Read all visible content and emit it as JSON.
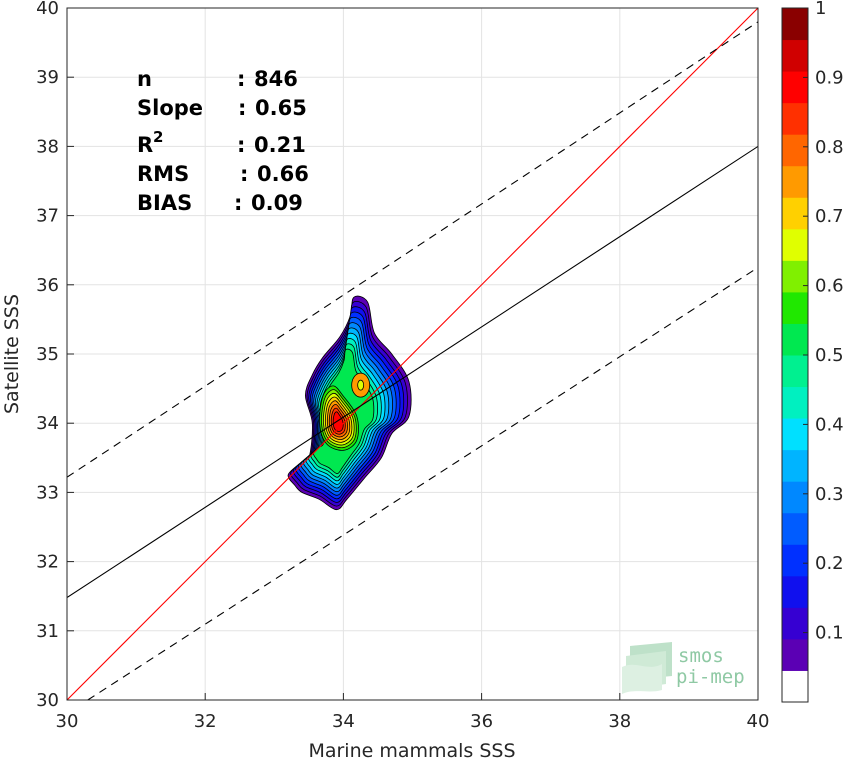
{
  "chart_data": {
    "type": "contour",
    "xlabel": "Marine mammals SSS",
    "ylabel": "Satellite SSS",
    "xlim": [
      30,
      40
    ],
    "ylim": [
      30,
      40
    ],
    "x_ticks": [
      "30",
      "32",
      "34",
      "36",
      "38",
      "40"
    ],
    "y_ticks": [
      "30",
      "31",
      "32",
      "33",
      "34",
      "35",
      "36",
      "37",
      "38",
      "39",
      "40"
    ],
    "grid": true,
    "stats": [
      {
        "key": "n",
        "sep": ":",
        "value": "846"
      },
      {
        "key": "Slope",
        "sep": ":",
        "value": "0.65"
      },
      {
        "key": "R",
        "sup": "2",
        "sep": ":",
        "value": "0.21"
      },
      {
        "key": "RMS",
        "sep": ":",
        "value": "0.66"
      },
      {
        "key": "BIAS",
        "sep": ":",
        "value": "0.09"
      }
    ],
    "lines": [
      {
        "name": "one-to-one",
        "color": "#ff0000",
        "dash": "solid",
        "points": [
          [
            30,
            30
          ],
          [
            40,
            40
          ]
        ]
      },
      {
        "name": "regression",
        "color": "#000000",
        "dash": "solid",
        "points": [
          [
            30,
            31.48
          ],
          [
            40,
            38.0
          ]
        ]
      },
      {
        "name": "upper-bound",
        "color": "#000000",
        "dash": "dashed",
        "points": [
          [
            30,
            33.22
          ],
          [
            40,
            39.8
          ]
        ]
      },
      {
        "name": "lower-bound",
        "color": "#000000",
        "dash": "dashed",
        "points": [
          [
            30.3,
            30.0
          ],
          [
            40,
            36.25
          ]
        ]
      }
    ],
    "density": {
      "center": [
        33.92,
        34.0
      ],
      "levels": [
        0.05,
        0.1,
        0.15,
        0.2,
        0.25,
        0.3,
        0.35,
        0.4,
        0.45,
        0.5,
        0.55,
        0.6,
        0.65,
        0.7,
        0.75,
        0.8,
        0.85,
        0.9,
        0.95
      ],
      "outer_contour": [
        [
          33.3,
          33.1
        ],
        [
          33.2,
          33.25
        ],
        [
          33.35,
          33.4
        ],
        [
          33.5,
          33.5
        ],
        [
          33.55,
          34.0
        ],
        [
          33.45,
          34.4
        ],
        [
          33.55,
          34.7
        ],
        [
          33.7,
          34.95
        ],
        [
          33.95,
          35.25
        ],
        [
          34.1,
          35.55
        ],
        [
          34.15,
          35.82
        ],
        [
          34.35,
          35.75
        ],
        [
          34.45,
          35.3
        ],
        [
          34.7,
          35.0
        ],
        [
          34.95,
          34.6
        ],
        [
          34.95,
          34.1
        ],
        [
          34.7,
          33.85
        ],
        [
          34.55,
          33.5
        ],
        [
          34.3,
          33.2
        ],
        [
          34.05,
          32.9
        ],
        [
          33.9,
          32.75
        ],
        [
          33.65,
          32.9
        ],
        [
          33.4,
          33.0
        ]
      ],
      "peak_contour": [
        [
          33.75,
          33.7
        ],
        [
          33.65,
          34.0
        ],
        [
          33.7,
          34.4
        ],
        [
          33.85,
          34.55
        ],
        [
          34.0,
          34.4
        ],
        [
          34.2,
          34.1
        ],
        [
          34.2,
          33.75
        ],
        [
          34.0,
          33.6
        ]
      ],
      "secondary_peak": [
        34.25,
        34.55
      ]
    },
    "colorbar": {
      "min": 0,
      "max": 1,
      "ticks": [
        "0.1",
        "0.2",
        "0.3",
        "0.4",
        "0.5",
        "0.6",
        "0.7",
        "0.8",
        "0.9",
        "1"
      ],
      "colors": [
        "#ffffff",
        "#5b00b4",
        "#3600d2",
        "#1010ee",
        "#0030ff",
        "#005cff",
        "#0088ff",
        "#00b4ff",
        "#00e0ff",
        "#00f0c0",
        "#00f090",
        "#00e850",
        "#20e800",
        "#80f000",
        "#e0ff00",
        "#ffd000",
        "#ff9a00",
        "#ff6600",
        "#ff3000",
        "#ff0000",
        "#d00000",
        "#8a0000"
      ]
    },
    "logo": {
      "line1": "smos",
      "line2": "pi-mep"
    }
  }
}
